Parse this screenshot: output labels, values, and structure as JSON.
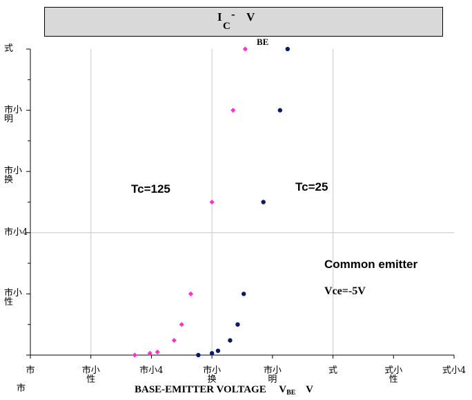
{
  "chart_data": {
    "type": "scatter",
    "title_parts": [
      "I",
      "C",
      "-",
      "V",
      "BE"
    ],
    "xlabel": {
      "text": "BASE-EMITTER VOLTAGE",
      "var": "V",
      "sub": "BE",
      "unit": "V"
    },
    "xlim": [
      0,
      1.4
    ],
    "ylim": [
      0,
      5
    ],
    "x_ticks": [
      {
        "label": "市",
        "value": 0
      },
      {
        "label": "市小\n性",
        "value": 0.2
      },
      {
        "label": "市小4",
        "value": 0.4
      },
      {
        "label": "市小\n换",
        "value": 0.6
      },
      {
        "label": "市小\n明",
        "value": 0.8
      },
      {
        "label": "式",
        "value": 1.0
      },
      {
        "label": "式小\n性",
        "value": 1.2
      },
      {
        "label": "式小4",
        "value": 1.4
      }
    ],
    "y_ticks": [
      {
        "label": "市",
        "value": 0
      },
      {
        "label": "市小\n性",
        "value": 1
      },
      {
        "label": "市小4",
        "value": 2
      },
      {
        "label": "市小\n换",
        "value": 3
      },
      {
        "label": "市小\n明",
        "value": 4
      },
      {
        "label": "式",
        "value": 5
      }
    ],
    "grid": true,
    "series": [
      {
        "name": "Tc=125",
        "color": "#ff33cc",
        "marker": "diamond",
        "points": [
          [
            0.345,
            0.0
          ],
          [
            0.395,
            0.03
          ],
          [
            0.42,
            0.05
          ],
          [
            0.475,
            0.24
          ],
          [
            0.5,
            0.5
          ],
          [
            0.53,
            1.0
          ],
          [
            0.6,
            2.5
          ],
          [
            0.67,
            4.0
          ],
          [
            0.71,
            5.0
          ]
        ]
      },
      {
        "name": "Tc=25",
        "color": "#0a1a66",
        "marker": "circle",
        "points": [
          [
            0.555,
            0.0
          ],
          [
            0.6,
            0.03
          ],
          [
            0.62,
            0.07
          ],
          [
            0.66,
            0.24
          ],
          [
            0.685,
            0.5
          ],
          [
            0.705,
            1.0
          ],
          [
            0.77,
            2.5
          ],
          [
            0.825,
            4.0
          ],
          [
            0.85,
            5.0
          ]
        ]
      }
    ],
    "annotations": {
      "tc125": "Tc=125",
      "tc25": "Tc=25",
      "common": "Common emitter",
      "vce": "Vce=-5V"
    },
    "y_bottom_label": "市"
  }
}
